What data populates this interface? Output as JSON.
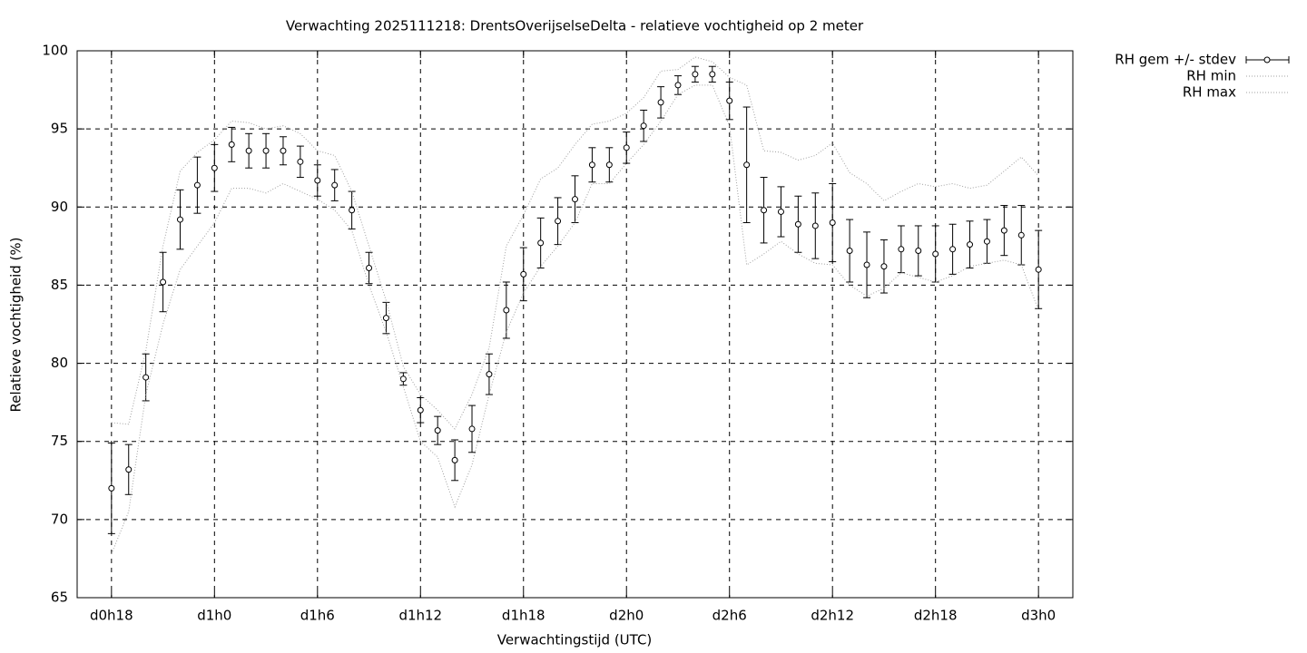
{
  "chart_data": {
    "type": "errorbar",
    "title": "Verwachting 2025111218: DrentsOverijselseDelta - relatieve vochtigheid op 2 meter",
    "x_label": "Verwachtingstijd (UTC)",
    "y_label": "Relatieve vochtigheid (%)",
    "x": [
      18,
      19,
      20,
      21,
      22,
      23,
      24,
      25,
      26,
      27,
      28,
      29,
      30,
      31,
      32,
      33,
      34,
      35,
      36,
      37,
      38,
      39,
      40,
      41,
      42,
      43,
      44,
      45,
      46,
      47,
      48,
      49,
      50,
      51,
      52,
      53,
      54,
      55,
      56,
      57,
      58,
      59,
      60,
      61,
      62,
      63,
      64,
      65,
      66,
      67,
      68,
      69,
      70,
      71,
      72
    ],
    "xlim": [
      16,
      74
    ],
    "xticks": [
      {
        "value": 18,
        "label": "d0h18"
      },
      {
        "value": 24,
        "label": "d1h0"
      },
      {
        "value": 30,
        "label": "d1h6"
      },
      {
        "value": 36,
        "label": "d1h12"
      },
      {
        "value": 42,
        "label": "d1h18"
      },
      {
        "value": 48,
        "label": "d2h0"
      },
      {
        "value": 54,
        "label": "d2h6"
      },
      {
        "value": 60,
        "label": "d2h12"
      },
      {
        "value": 66,
        "label": "d2h18"
      },
      {
        "value": 72,
        "label": "d3h0"
      }
    ],
    "ylim": [
      65,
      100
    ],
    "yticks": [
      65,
      70,
      75,
      80,
      85,
      90,
      95,
      100
    ],
    "grid": true,
    "legend": "outside-top-right",
    "series": [
      {
        "name": "RH gem +/- stdev",
        "color": "#000000",
        "style": "errorbar",
        "values": [
          72.0,
          73.2,
          79.1,
          85.2,
          89.2,
          91.4,
          92.5,
          94.0,
          93.6,
          93.6,
          93.6,
          92.9,
          91.7,
          91.4,
          89.8,
          86.1,
          82.9,
          79.0,
          77.0,
          75.7,
          73.8,
          75.8,
          79.3,
          83.4,
          85.7,
          87.7,
          89.1,
          90.5,
          92.7,
          92.7,
          93.8,
          95.2,
          96.7,
          97.8,
          98.5,
          98.5,
          96.8,
          92.7,
          89.8,
          89.7,
          88.9,
          88.8,
          89.0,
          87.2,
          86.3,
          86.2,
          87.3,
          87.2,
          87.0,
          87.3,
          87.6,
          87.8,
          88.5,
          88.2,
          86.0
        ],
        "errors": [
          2.9,
          1.6,
          1.5,
          1.9,
          1.9,
          1.8,
          1.5,
          1.1,
          1.1,
          1.1,
          0.9,
          1.0,
          1.0,
          1.0,
          1.2,
          1.0,
          1.0,
          0.4,
          0.8,
          0.9,
          1.3,
          1.5,
          1.3,
          1.8,
          1.7,
          1.6,
          1.5,
          1.5,
          1.1,
          1.1,
          1.0,
          1.0,
          1.0,
          0.6,
          0.5,
          0.5,
          1.2,
          3.7,
          2.1,
          1.6,
          1.8,
          2.1,
          2.5,
          2.0,
          2.1,
          1.7,
          1.5,
          1.6,
          1.8,
          1.6,
          1.5,
          1.4,
          1.6,
          1.9,
          2.5
        ]
      },
      {
        "name": "RH min",
        "color": "#a0a0a0",
        "style": "dotted",
        "values": [
          67.8,
          70.5,
          78,
          82.5,
          86,
          87.5,
          89,
          91.2,
          91.2,
          90.9,
          91.5,
          91,
          90.5,
          89.8,
          88.5,
          85,
          82,
          78.5,
          75,
          74,
          70.8,
          73.5,
          78,
          82,
          84.5,
          86.2,
          87.5,
          89,
          91.5,
          91.5,
          92.8,
          94,
          95.5,
          97.2,
          97.8,
          97.8,
          95.2,
          86.3,
          87,
          87.8,
          87,
          86.4,
          86.3,
          85,
          84.3,
          84.8,
          85.8,
          85.5,
          85.2,
          85.6,
          86.2,
          86.4,
          86.6,
          86.3,
          83.4
        ]
      },
      {
        "name": "RH max",
        "color": "#a0a0a0",
        "style": "dotted",
        "values": [
          76.2,
          76.1,
          80.8,
          87.5,
          92.3,
          93.5,
          94.3,
          95.5,
          95.4,
          95,
          95.2,
          94.7,
          93.6,
          93.3,
          91,
          87.5,
          84,
          79.8,
          78,
          77,
          75.8,
          78,
          81,
          87.5,
          89.5,
          91.8,
          92.5,
          94,
          95.3,
          95.5,
          96,
          97,
          98.7,
          98.8,
          99.6,
          99.3,
          98.3,
          97.8,
          93.6,
          93.5,
          93,
          93.3,
          94.1,
          92.2,
          91.5,
          90.4,
          91,
          91.5,
          91.3,
          91.5,
          91.2,
          91.4,
          92.3,
          93.2,
          92
        ]
      }
    ]
  }
}
